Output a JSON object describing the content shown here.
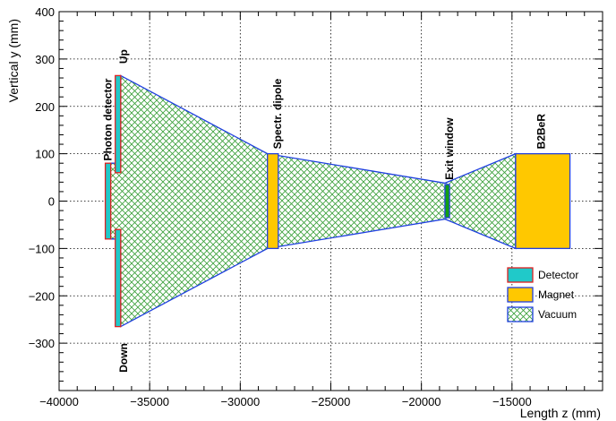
{
  "chart_data": {
    "type": "schematic",
    "xlabel": "Length z (mm)",
    "ylabel": "Vertical y (mm)",
    "xlim": [
      -40000,
      -10000
    ],
    "ylim": [
      -400,
      400
    ],
    "x_ticks": [
      -40000,
      -35000,
      -30000,
      -25000,
      -20000,
      -15000
    ],
    "y_ticks": [
      -300,
      -200,
      -100,
      0,
      100,
      200,
      300,
      400
    ],
    "grid": true,
    "vacuum_polygon": [
      [
        -36600,
        265
      ],
      [
        -28500,
        100
      ],
      [
        -18700,
        38
      ],
      [
        -14800,
        100
      ],
      [
        -14800,
        -100
      ],
      [
        -18700,
        -38
      ],
      [
        -28500,
        -100
      ],
      [
        -36600,
        -265
      ],
      [
        -36600,
        -80
      ],
      [
        -37200,
        -80
      ],
      [
        -37200,
        80
      ],
      [
        -36600,
        80
      ]
    ],
    "components": [
      {
        "label": "Up",
        "kind": "Detector",
        "z": [
          -36900,
          -36600
        ],
        "y": [
          60,
          265
        ]
      },
      {
        "label": "Photon detector",
        "kind": "Detector",
        "z": [
          -37450,
          -37150
        ],
        "y": [
          -80,
          80
        ]
      },
      {
        "label": "Down",
        "kind": "Detector",
        "z": [
          -36900,
          -36600
        ],
        "y": [
          -265,
          -60
        ]
      },
      {
        "label": "Spectr. dipole",
        "kind": "Magnet",
        "z": [
          -28500,
          -27900
        ],
        "y": [
          -100,
          100
        ]
      },
      {
        "label": "Exit window",
        "kind": "Window",
        "z": [
          -18700,
          -18450
        ],
        "y": [
          -35,
          35
        ]
      },
      {
        "label": "B2BeR",
        "kind": "Magnet",
        "z": [
          -14800,
          -11800
        ],
        "y": [
          -100,
          100
        ]
      }
    ],
    "legend": {
      "placement": "bottom-right",
      "entries": [
        {
          "label": "Detector",
          "fill": "#20c9c9",
          "stroke": "#e02020"
        },
        {
          "label": "Magnet",
          "fill": "#ffc800",
          "stroke": "#2040e0"
        },
        {
          "label": "Vacuum",
          "fill": "#a8dc98",
          "stroke": "#2040e0"
        }
      ]
    },
    "colors": {
      "detector": "#20c9c9",
      "magnet": "#ffc800",
      "window": "#12a012",
      "vacuum_hatch": "#30a030",
      "outline_blue": "#2040e0",
      "outline_red": "#e02020"
    }
  }
}
